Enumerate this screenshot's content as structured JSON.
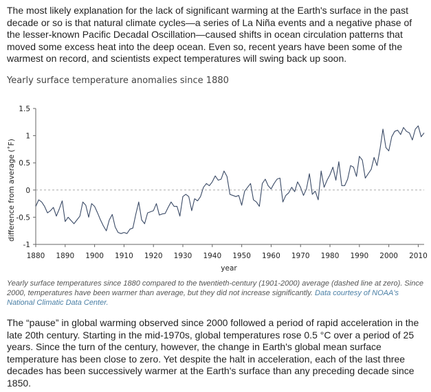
{
  "intro": "The most likely explanation for the lack of significant warming at the Earth's surface in the past decade or so is that natural climate cycles—a series of La Niña events and a negative phase of the lesser-known Pacific Decadal Oscillation—caused shifts in ocean circulation patterns that moved some excess heat into the deep ocean. Even so, recent years have been some of the warmest on record, and scientists expect temperatures will swing back up soon.",
  "caption": {
    "text": "Yearly surface temperatures since 1880 compared to the twentieth-century (1901-2000) average (dashed line at zero). Since 2000, temperatures have been warmer than average, but they did not increase significantly.",
    "credit": "Data courtesy of NOAA's National Climatic Data Center."
  },
  "outro": "The “pause” in global warming observed since 2000 followed a period of rapid acceleration in the late 20th century. Starting in the mid-1970s, global temperatures rose 0.5 °C over a period of 25 years. Since the turn of the century, however, the change in Earth's global mean surface temperature has been close to zero. Yet despite the halt in acceleration, each of the last three decades has been successively warmer at the Earth's surface than any preceding decade since 1850.",
  "colors": {
    "line": "#3a4a66",
    "axis": "#666666",
    "zero_line": "#aaaaaa"
  },
  "chart_data": {
    "type": "line",
    "title": "Yearly surface temperature anomalies since 1880",
    "xlabel": "year",
    "ylabel": "difference from average (˚F)",
    "xlim": [
      1880,
      2012
    ],
    "ylim": [
      -1,
      1.5
    ],
    "xticks": [
      1880,
      1890,
      1900,
      1910,
      1920,
      1930,
      1940,
      1950,
      1960,
      1970,
      1980,
      1990,
      2000,
      2010
    ],
    "yticks": [
      -1,
      -0.5,
      0,
      0.5,
      1,
      1.5
    ],
    "ytick_labels": [
      "-1",
      "-0.5",
      "0",
      "0.5",
      "1",
      "1.5"
    ],
    "reference_line": 0,
    "grid": false,
    "x": [
      1880,
      1881,
      1882,
      1883,
      1884,
      1885,
      1886,
      1887,
      1888,
      1889,
      1890,
      1891,
      1892,
      1893,
      1894,
      1895,
      1896,
      1897,
      1898,
      1899,
      1900,
      1901,
      1902,
      1903,
      1904,
      1905,
      1906,
      1907,
      1908,
      1909,
      1910,
      1911,
      1912,
      1913,
      1914,
      1915,
      1916,
      1917,
      1918,
      1919,
      1920,
      1921,
      1922,
      1923,
      1924,
      1925,
      1926,
      1927,
      1928,
      1929,
      1930,
      1931,
      1932,
      1933,
      1934,
      1935,
      1936,
      1937,
      1938,
      1939,
      1940,
      1941,
      1942,
      1943,
      1944,
      1945,
      1946,
      1947,
      1948,
      1949,
      1950,
      1951,
      1952,
      1953,
      1954,
      1955,
      1956,
      1957,
      1958,
      1959,
      1960,
      1961,
      1962,
      1963,
      1964,
      1965,
      1966,
      1967,
      1968,
      1969,
      1970,
      1971,
      1972,
      1973,
      1974,
      1975,
      1976,
      1977,
      1978,
      1979,
      1980,
      1981,
      1982,
      1983,
      1984,
      1985,
      1986,
      1987,
      1988,
      1989,
      1990,
      1991,
      1992,
      1993,
      1994,
      1995,
      1996,
      1997,
      1998,
      1999,
      2000,
      2001,
      2002,
      2003,
      2004,
      2005,
      2006,
      2007,
      2008,
      2009,
      2010,
      2011,
      2012
    ],
    "series": [
      {
        "values": [
          -0.3,
          -0.18,
          -0.22,
          -0.3,
          -0.42,
          -0.38,
          -0.32,
          -0.48,
          -0.35,
          -0.2,
          -0.58,
          -0.5,
          -0.56,
          -0.62,
          -0.55,
          -0.48,
          -0.22,
          -0.28,
          -0.5,
          -0.25,
          -0.3,
          -0.42,
          -0.55,
          -0.66,
          -0.75,
          -0.55,
          -0.45,
          -0.68,
          -0.78,
          -0.8,
          -0.78,
          -0.8,
          -0.72,
          -0.7,
          -0.45,
          -0.22,
          -0.55,
          -0.62,
          -0.42,
          -0.4,
          -0.38,
          -0.25,
          -0.46,
          -0.44,
          -0.43,
          -0.32,
          -0.22,
          -0.3,
          -0.3,
          -0.48,
          -0.12,
          -0.08,
          -0.12,
          -0.38,
          -0.16,
          -0.2,
          -0.12,
          0.05,
          0.12,
          0.08,
          0.15,
          0.26,
          0.18,
          0.2,
          0.35,
          0.25,
          -0.08,
          -0.1,
          -0.12,
          -0.1,
          -0.28,
          -0.02,
          0.05,
          0.12,
          -0.18,
          -0.22,
          -0.3,
          0.12,
          0.2,
          0.08,
          0.02,
          0.12,
          0.2,
          0.22,
          -0.22,
          -0.1,
          -0.05,
          0.05,
          -0.03,
          0.15,
          0.05,
          -0.1,
          0.02,
          0.3,
          -0.08,
          -0.02,
          -0.18,
          0.35,
          0.05,
          0.18,
          0.28,
          0.42,
          0.18,
          0.52,
          0.08,
          0.08,
          0.2,
          0.45,
          0.42,
          0.25,
          0.62,
          0.55,
          0.22,
          0.3,
          0.38,
          0.6,
          0.45,
          0.75,
          1.12,
          0.78,
          0.72,
          0.98,
          1.08,
          1.1,
          1.02,
          1.15,
          1.08,
          1.05,
          0.92,
          1.12,
          1.18,
          0.98,
          1.05
        ]
      }
    ]
  }
}
